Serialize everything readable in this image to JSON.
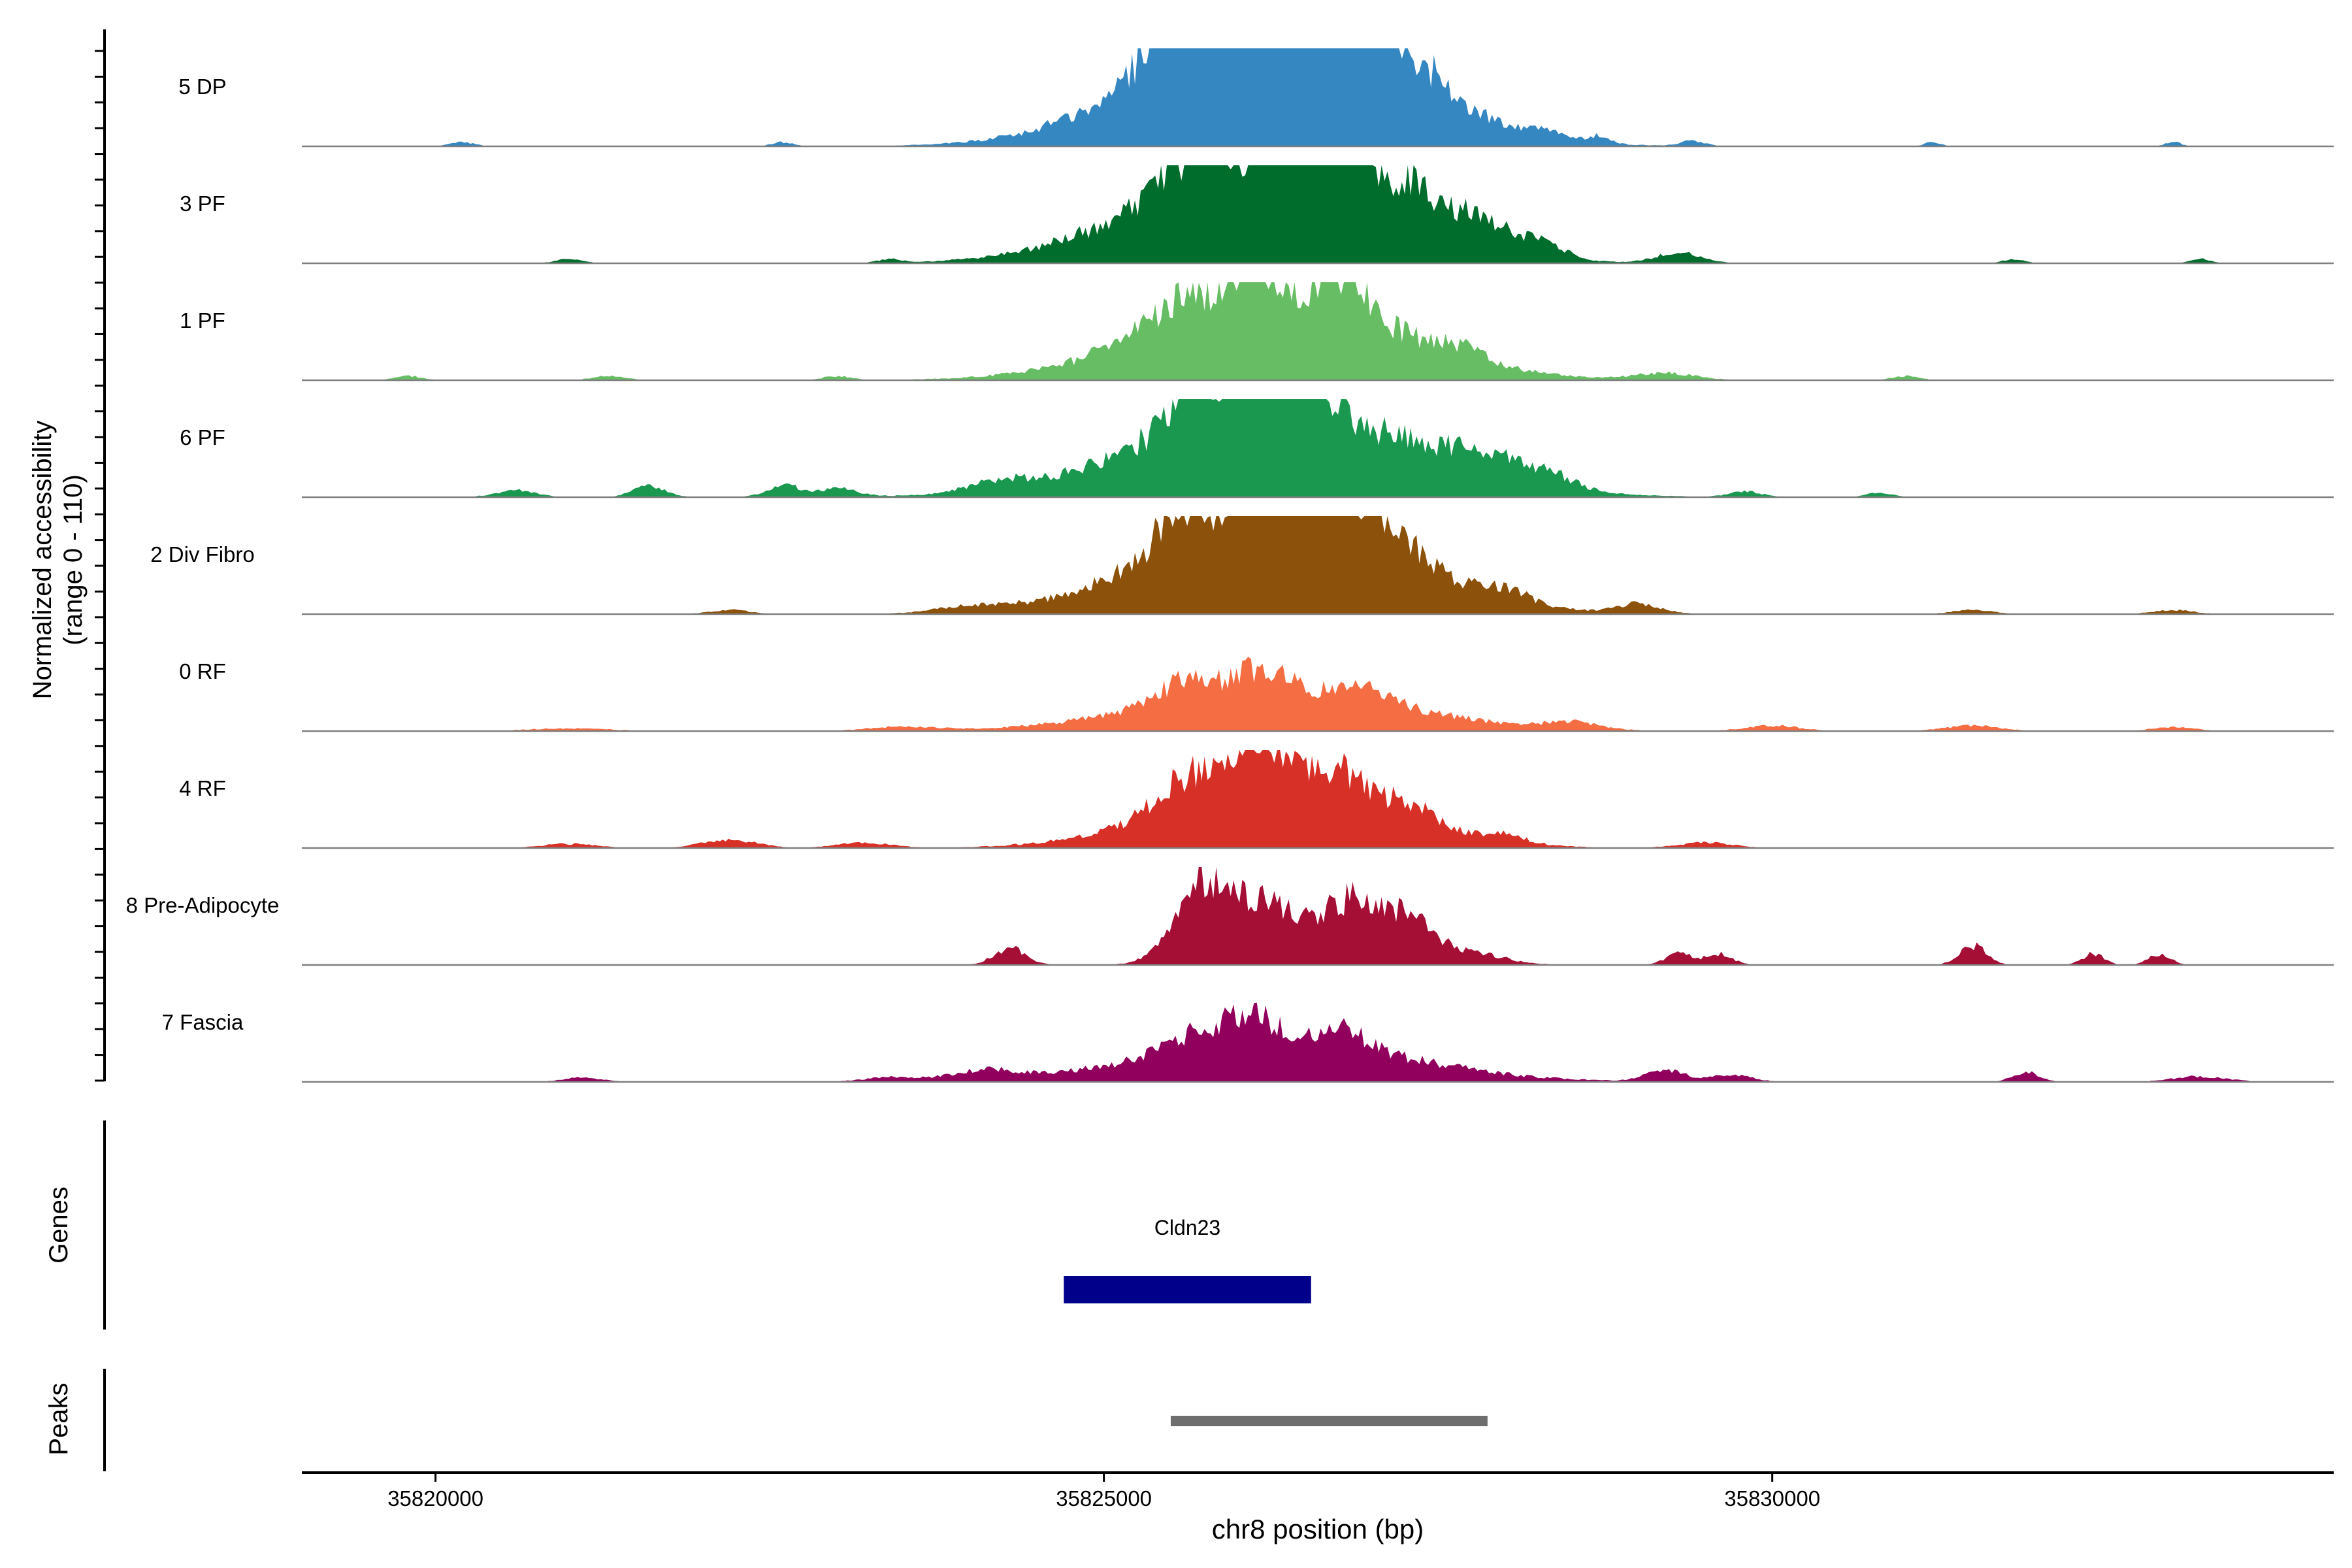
{
  "chart_data": {
    "type": "area",
    "title": "",
    "ylabel_line1": "Normalized accessibility",
    "ylabel_line2": "(range 0 - 110)",
    "ylim": [
      0,
      110
    ],
    "xlabel": "chr8 position (bp)",
    "xlim": [
      35819000,
      35834200
    ],
    "x_ticks": [
      35820000,
      35825000,
      35830000
    ],
    "x_tick_labels": [
      "35820000",
      "35825000",
      "35830000"
    ],
    "tracks": [
      {
        "name": "5 DP",
        "color": "#3587C2",
        "peaks": [
          [
            35826300,
            95,
            900
          ],
          [
            35826300,
            52,
            320
          ],
          [
            35825600,
            25,
            200
          ],
          [
            35826000,
            22,
            180
          ],
          [
            35826900,
            28,
            240
          ],
          [
            35827300,
            14,
            220
          ],
          [
            35825300,
            8,
            160
          ],
          [
            35828300,
            6,
            120
          ],
          [
            35828700,
            5,
            80
          ],
          [
            35829400,
            4,
            90
          ],
          [
            35820200,
            3,
            90
          ],
          [
            35822600,
            3,
            80
          ],
          [
            35831200,
            3,
            60
          ],
          [
            35833000,
            3,
            60
          ]
        ]
      },
      {
        "name": "3 PF",
        "color": "#006D2C",
        "peaks": [
          [
            35826200,
            70,
            900
          ],
          [
            35825700,
            30,
            180
          ],
          [
            35826500,
            40,
            250
          ],
          [
            35826800,
            32,
            180
          ],
          [
            35827300,
            25,
            160
          ],
          [
            35827800,
            22,
            220
          ],
          [
            35828300,
            10,
            160
          ],
          [
            35829300,
            8,
            160
          ],
          [
            35821000,
            3,
            100
          ],
          [
            35823400,
            3,
            80
          ],
          [
            35831800,
            3,
            80
          ],
          [
            35833200,
            3,
            80
          ]
        ]
      },
      {
        "name": "1 PF",
        "color": "#66BD63",
        "peaks": [
          [
            35826300,
            60,
            900
          ],
          [
            35826100,
            32,
            160
          ],
          [
            35826800,
            25,
            160
          ],
          [
            35825600,
            18,
            160
          ],
          [
            35825200,
            6,
            150
          ],
          [
            35827700,
            7,
            150
          ],
          [
            35829200,
            5,
            220
          ],
          [
            35819800,
            3,
            100
          ],
          [
            35821300,
            3,
            120
          ],
          [
            35823000,
            3,
            100
          ],
          [
            35831000,
            3,
            100
          ]
        ]
      },
      {
        "name": "6 PF",
        "color": "#1A9850",
        "peaks": [
          [
            35826300,
            65,
            1000
          ],
          [
            35826100,
            30,
            200
          ],
          [
            35826500,
            32,
            180
          ],
          [
            35825700,
            22,
            200
          ],
          [
            35827800,
            15,
            250
          ],
          [
            35828300,
            10,
            200
          ],
          [
            35824200,
            6,
            200
          ],
          [
            35822600,
            9,
            120
          ],
          [
            35821600,
            8,
            120
          ],
          [
            35820600,
            5,
            150
          ],
          [
            35823000,
            6,
            150
          ],
          [
            35829800,
            4,
            120
          ],
          [
            35830800,
            3,
            100
          ]
        ]
      },
      {
        "name": "2 Div Fibro",
        "color": "#8C510A",
        "peaks": [
          [
            35826300,
            70,
            900
          ],
          [
            35826200,
            42,
            180
          ],
          [
            35826800,
            40,
            200
          ],
          [
            35825600,
            32,
            180
          ],
          [
            35827300,
            12,
            160
          ],
          [
            35828000,
            9,
            160
          ],
          [
            35829000,
            7,
            160
          ],
          [
            35822200,
            3,
            150
          ],
          [
            35824000,
            4,
            250
          ],
          [
            35831500,
            3,
            150
          ],
          [
            35833000,
            3,
            150
          ]
        ]
      },
      {
        "name": "0 RF",
        "color": "#F46D43",
        "peaks": [
          [
            35826300,
            28,
            950
          ],
          [
            35826200,
            18,
            220
          ],
          [
            35825600,
            15,
            200
          ],
          [
            35827000,
            8,
            180
          ],
          [
            35828500,
            5,
            200
          ],
          [
            35830000,
            4,
            200
          ],
          [
            35831500,
            4,
            200
          ],
          [
            35823500,
            3,
            250
          ],
          [
            35821000,
            2,
            300
          ],
          [
            35833000,
            3,
            150
          ]
        ]
      },
      {
        "name": "4 RF",
        "color": "#D73027",
        "peaks": [
          [
            35826300,
            50,
            800
          ],
          [
            35826200,
            24,
            180
          ],
          [
            35825600,
            18,
            180
          ],
          [
            35826800,
            16,
            160
          ],
          [
            35827300,
            10,
            180
          ],
          [
            35828000,
            5,
            160
          ],
          [
            35829500,
            4,
            200
          ],
          [
            35822200,
            6,
            200
          ],
          [
            35823200,
            4,
            200
          ],
          [
            35821000,
            3,
            200
          ]
        ]
      },
      {
        "name": "8 Pre-Adipocyte",
        "color": "#A50F36",
        "peaks": [
          [
            35825700,
            40,
            200
          ],
          [
            35826000,
            28,
            280
          ],
          [
            35826400,
            28,
            320
          ],
          [
            35826900,
            38,
            200
          ],
          [
            35827300,
            30,
            160
          ],
          [
            35827700,
            10,
            260
          ],
          [
            35824300,
            12,
            120
          ],
          [
            35829300,
            8,
            100
          ],
          [
            35829600,
            8,
            100
          ],
          [
            35831500,
            14,
            100
          ],
          [
            35832400,
            8,
            80
          ],
          [
            35832900,
            8,
            80
          ]
        ]
      },
      {
        "name": "7 Fascia",
        "color": "#91005C",
        "peaks": [
          [
            35826300,
            30,
            950
          ],
          [
            35826100,
            18,
            200
          ],
          [
            35825700,
            12,
            200
          ],
          [
            35826800,
            12,
            180
          ],
          [
            35824100,
            7,
            250
          ],
          [
            35829200,
            8,
            150
          ],
          [
            35829700,
            5,
            150
          ],
          [
            35831900,
            7,
            100
          ],
          [
            35833200,
            4,
            200
          ],
          [
            35821100,
            3,
            150
          ],
          [
            35823400,
            3,
            200
          ]
        ]
      }
    ],
    "genes": {
      "label": "Genes",
      "items": [
        {
          "name": "Cldn23",
          "start": 35824700,
          "end": 35826550,
          "color": "#00008B"
        }
      ]
    },
    "peaks_track": {
      "label": "Peaks",
      "items": [
        {
          "start": 35825500,
          "end": 35827870,
          "color": "#6E6E6E"
        }
      ]
    }
  }
}
